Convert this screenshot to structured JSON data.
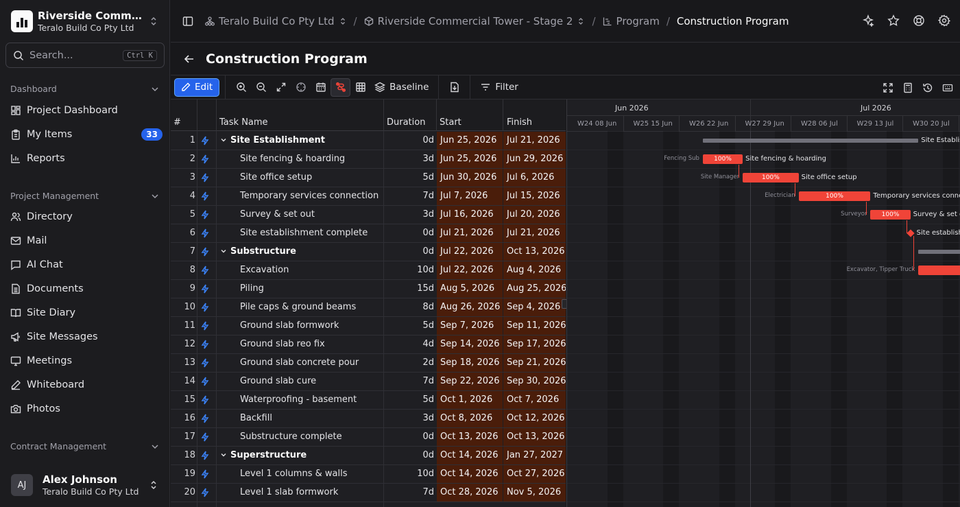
{
  "workspace": {
    "name": "Riverside Commercial Tower - Stage 2",
    "org": "Teralo Build Co Pty Ltd"
  },
  "search": {
    "placeholder": "Search...",
    "shortcut": "Ctrl K"
  },
  "sidebar": {
    "groups": [
      {
        "label": "Dashboard",
        "items": [
          {
            "label": "Project Dashboard",
            "icon": "dashboard-icon"
          },
          {
            "label": "My Items",
            "icon": "clipboard-icon",
            "badge": "33"
          },
          {
            "label": "Reports",
            "icon": "chart-icon"
          }
        ]
      },
      {
        "label": "Project Management",
        "items": [
          {
            "label": "Directory",
            "icon": "users-icon"
          },
          {
            "label": "Mail",
            "icon": "mail-icon"
          },
          {
            "label": "AI Chat",
            "icon": "chat-icon"
          },
          {
            "label": "Documents",
            "icon": "document-icon"
          },
          {
            "label": "Site Diary",
            "icon": "book-icon"
          },
          {
            "label": "Site Messages",
            "icon": "megaphone-icon"
          },
          {
            "label": "Meetings",
            "icon": "presentation-icon"
          },
          {
            "label": "Whiteboard",
            "icon": "pen-icon"
          },
          {
            "label": "Photos",
            "icon": "camera-icon"
          }
        ]
      },
      {
        "label": "Contract Management",
        "items": []
      }
    ]
  },
  "user": {
    "initials": "AJ",
    "name": "Alex Johnson",
    "org": "Teralo Build Co Pty Ltd"
  },
  "breadcrumb": {
    "company": "Teralo Build Co Pty Ltd",
    "project": "Riverside Commercial Tower - Stage 2",
    "section": "Program",
    "current": "Construction Program"
  },
  "page": {
    "title": "Construction Program"
  },
  "toolbar": {
    "edit_label": "Edit",
    "baseline_label": "Baseline",
    "filter_label": "Filter"
  },
  "grid": {
    "headers": {
      "num": "#",
      "name": "Task Name",
      "duration": "Duration",
      "start": "Start",
      "finish": "Finish"
    },
    "rows": [
      {
        "num": "1",
        "name": "Site Establishment",
        "summary": true,
        "duration": "0d",
        "start": "Jun 25, 2026",
        "finish": "Jul 21, 2026"
      },
      {
        "num": "2",
        "name": "Site fencing & hoarding",
        "duration": "3d",
        "start": "Jun 25, 2026",
        "finish": "Jun 29, 2026"
      },
      {
        "num": "3",
        "name": "Site office setup",
        "duration": "5d",
        "start": "Jun 30, 2026",
        "finish": "Jul 6, 2026"
      },
      {
        "num": "4",
        "name": "Temporary services connection",
        "duration": "7d",
        "start": "Jul 7, 2026",
        "finish": "Jul 15, 2026"
      },
      {
        "num": "5",
        "name": "Survey & set out",
        "duration": "3d",
        "start": "Jul 16, 2026",
        "finish": "Jul 20, 2026"
      },
      {
        "num": "6",
        "name": "Site establishment complete",
        "duration": "0d",
        "start": "Jul 21, 2026",
        "finish": "Jul 21, 2026"
      },
      {
        "num": "7",
        "name": "Substructure",
        "summary": true,
        "duration": "0d",
        "start": "Jul 22, 2026",
        "finish": "Oct 13, 2026"
      },
      {
        "num": "8",
        "name": "Excavation",
        "duration": "10d",
        "start": "Jul 22, 2026",
        "finish": "Aug 4, 2026"
      },
      {
        "num": "9",
        "name": "Piling",
        "duration": "15d",
        "start": "Aug 5, 2026",
        "finish": "Aug 25, 2026"
      },
      {
        "num": "10",
        "name": "Pile caps & ground beams",
        "duration": "8d",
        "start": "Aug 26, 2026",
        "finish": "Sep 4, 2026"
      },
      {
        "num": "11",
        "name": "Ground slab formwork",
        "duration": "5d",
        "start": "Sep 7, 2026",
        "finish": "Sep 11, 2026"
      },
      {
        "num": "12",
        "name": "Ground slab reo fix",
        "duration": "4d",
        "start": "Sep 14, 2026",
        "finish": "Sep 17, 2026"
      },
      {
        "num": "13",
        "name": "Ground slab concrete pour",
        "duration": "2d",
        "start": "Sep 18, 2026",
        "finish": "Sep 21, 2026"
      },
      {
        "num": "14",
        "name": "Ground slab cure",
        "duration": "7d",
        "start": "Sep 22, 2026",
        "finish": "Sep 30, 2026"
      },
      {
        "num": "15",
        "name": "Waterproofing - basement",
        "duration": "5d",
        "start": "Oct 1, 2026",
        "finish": "Oct 7, 2026"
      },
      {
        "num": "16",
        "name": "Backfill",
        "duration": "3d",
        "start": "Oct 8, 2026",
        "finish": "Oct 12, 2026"
      },
      {
        "num": "17",
        "name": "Substructure complete",
        "duration": "0d",
        "start": "Oct 13, 2026",
        "finish": "Oct 13, 2026"
      },
      {
        "num": "18",
        "name": "Superstructure",
        "summary": true,
        "duration": "0d",
        "start": "Oct 14, 2026",
        "finish": "Jan 27, 2027"
      },
      {
        "num": "19",
        "name": "Level 1 columns & walls",
        "duration": "10d",
        "start": "Oct 14, 2026",
        "finish": "Oct 27, 2026"
      },
      {
        "num": "20",
        "name": "Level 1 slab formwork",
        "duration": "7d",
        "start": "Oct 28, 2026",
        "finish": "Nov 5, 2026"
      }
    ]
  },
  "gantt": {
    "months": [
      "Jun 2026",
      "Jul 2026"
    ],
    "weeks": [
      "W24 08 Jun",
      "W25 15 Jun",
      "W26 22 Jun",
      "W27 29 Jun",
      "W28 06 Jul",
      "W29 13 Jul",
      "W30 20 Jul"
    ],
    "labels": {
      "r1": "Site Establishment",
      "r2": "Site fencing & hoarding",
      "r3": "Site office setup",
      "r4": "Temporary services connection",
      "r5": "Survey & set out",
      "r6": "Site establishment complete"
    },
    "resources": {
      "r2": "Fencing Sub",
      "r3": "Site Manager",
      "r4": "Electrician",
      "r5": "Surveyor",
      "r8": "Excavator, Tipper Truck"
    },
    "progress": {
      "r2": "100%",
      "r3": "100%",
      "r4": "100%",
      "r5": "100%"
    }
  },
  "colors": {
    "accent": "#2563eb",
    "bar": "#f04438",
    "date_cell": "#4a1d0a"
  }
}
